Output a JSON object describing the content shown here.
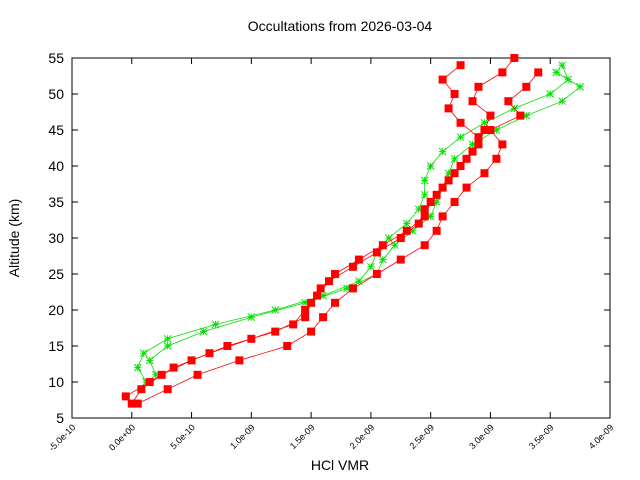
{
  "chart_data": {
    "type": "scatter",
    "title": "Occultations from 2026-03-04",
    "x_label": "HCl VMR",
    "y_label": "Altitude (km)",
    "xlim": [
      -5e-10,
      4e-09
    ],
    "ylim": [
      5,
      55
    ],
    "xticks": [
      {
        "value": -5e-10,
        "label": "-5.0e-10"
      },
      {
        "value": 0,
        "label": "0.0e+00"
      },
      {
        "value": 5e-10,
        "label": "5.0e-10"
      },
      {
        "value": 1e-09,
        "label": "1.0e-09"
      },
      {
        "value": 1.5e-09,
        "label": "1.5e-09"
      },
      {
        "value": 2e-09,
        "label": "2.0e-09"
      },
      {
        "value": 2.5e-09,
        "label": "2.5e-09"
      },
      {
        "value": 3e-09,
        "label": "3.0e-09"
      },
      {
        "value": 3.5e-09,
        "label": "3.5e-09"
      },
      {
        "value": 4e-09,
        "label": "4.0e-09"
      }
    ],
    "yticks": [
      5,
      10,
      15,
      20,
      25,
      30,
      35,
      40,
      45,
      50,
      55
    ],
    "series": [
      {
        "color": "#00e000",
        "marker": "star",
        "x": [
          1.2e-10,
          5e-11,
          1e-10,
          3e-10,
          7e-10,
          1.2e-09,
          1.6e-09,
          1.9e-09,
          2e-09,
          2.05e-09,
          2.15e-09,
          2.3e-09,
          2.4e-09,
          2.45e-09,
          2.45e-09,
          2.5e-09,
          2.6e-09,
          2.75e-09,
          2.95e-09,
          3.2e-09,
          3.5e-09,
          3.65e-09,
          3.6e-09
        ],
        "values": [
          10,
          12,
          14,
          16,
          18,
          20,
          22,
          24,
          26,
          28,
          30,
          32,
          34,
          36,
          38,
          40,
          42,
          44,
          46,
          48,
          50,
          52,
          54
        ]
      },
      {
        "color": "#00e000",
        "marker": "star",
        "x": [
          2e-10,
          1.5e-10,
          3e-10,
          6e-10,
          1e-09,
          1.45e-09,
          1.8e-09,
          2.05e-09,
          2.1e-09,
          2.2e-09,
          2.35e-09,
          2.5e-09,
          2.55e-09,
          2.6e-09,
          2.65e-09,
          2.7e-09,
          2.85e-09,
          3.05e-09,
          3.3e-09,
          3.6e-09,
          3.75e-09,
          3.55e-09
        ],
        "values": [
          11,
          13,
          15,
          17,
          19,
          21,
          23,
          25,
          27,
          29,
          31,
          33,
          35,
          37,
          39,
          41,
          43,
          45,
          47,
          49,
          51,
          53
        ]
      },
      {
        "color": "#ff0000",
        "marker": "square",
        "x": [
          0,
          8e-11,
          2.5e-10,
          5e-10,
          8e-10,
          1.2e-09,
          1.45e-09,
          1.5e-09,
          1.58e-09,
          1.7e-09,
          1.9e-09,
          2.1e-09,
          2.3e-09,
          2.45e-09,
          2.5e-09,
          2.6e-09,
          2.7e-09,
          2.8e-09,
          2.9e-09,
          2.95e-09,
          3e-09,
          2.85e-09,
          2.9e-09,
          3.1e-09,
          3.2e-09
        ],
        "values": [
          7,
          9,
          11,
          13,
          15,
          17,
          19,
          21,
          23,
          25,
          27,
          29,
          31,
          33,
          35,
          37,
          39,
          41,
          43,
          45,
          47,
          49,
          51,
          53,
          55
        ]
      },
      {
        "color": "#ff0000",
        "marker": "square",
        "x": [
          -5e-11,
          1.5e-10,
          3.5e-10,
          6.5e-10,
          1e-09,
          1.35e-09,
          1.45e-09,
          1.55e-09,
          1.65e-09,
          1.85e-09,
          2.05e-09,
          2.25e-09,
          2.4e-09,
          2.45e-09,
          2.55e-09,
          2.65e-09,
          2.75e-09,
          2.85e-09,
          2.9e-09,
          2.75e-09,
          2.65e-09,
          2.7e-09,
          2.6e-09,
          2.75e-09
        ],
        "values": [
          8,
          10,
          12,
          14,
          16,
          18,
          20,
          22,
          24,
          26,
          28,
          30,
          32,
          34,
          36,
          38,
          40,
          42,
          44,
          46,
          48,
          50,
          52,
          54
        ]
      },
      {
        "color": "#ff0000",
        "marker": "square",
        "x": [
          5e-11,
          3e-10,
          5.5e-10,
          9e-10,
          1.3e-09,
          1.5e-09,
          1.6e-09,
          1.7e-09,
          1.85e-09,
          2.05e-09,
          2.25e-09,
          2.45e-09,
          2.55e-09,
          2.6e-09,
          2.7e-09,
          2.8e-09,
          2.95e-09,
          3.05e-09,
          3.1e-09,
          3e-09,
          3.25e-09,
          3.15e-09,
          3.3e-09,
          3.4e-09
        ],
        "values": [
          7,
          9,
          11,
          13,
          15,
          17,
          19,
          21,
          23,
          25,
          27,
          29,
          31,
          33,
          35,
          37,
          39,
          41,
          43,
          45,
          47,
          49,
          51,
          53
        ]
      }
    ]
  }
}
